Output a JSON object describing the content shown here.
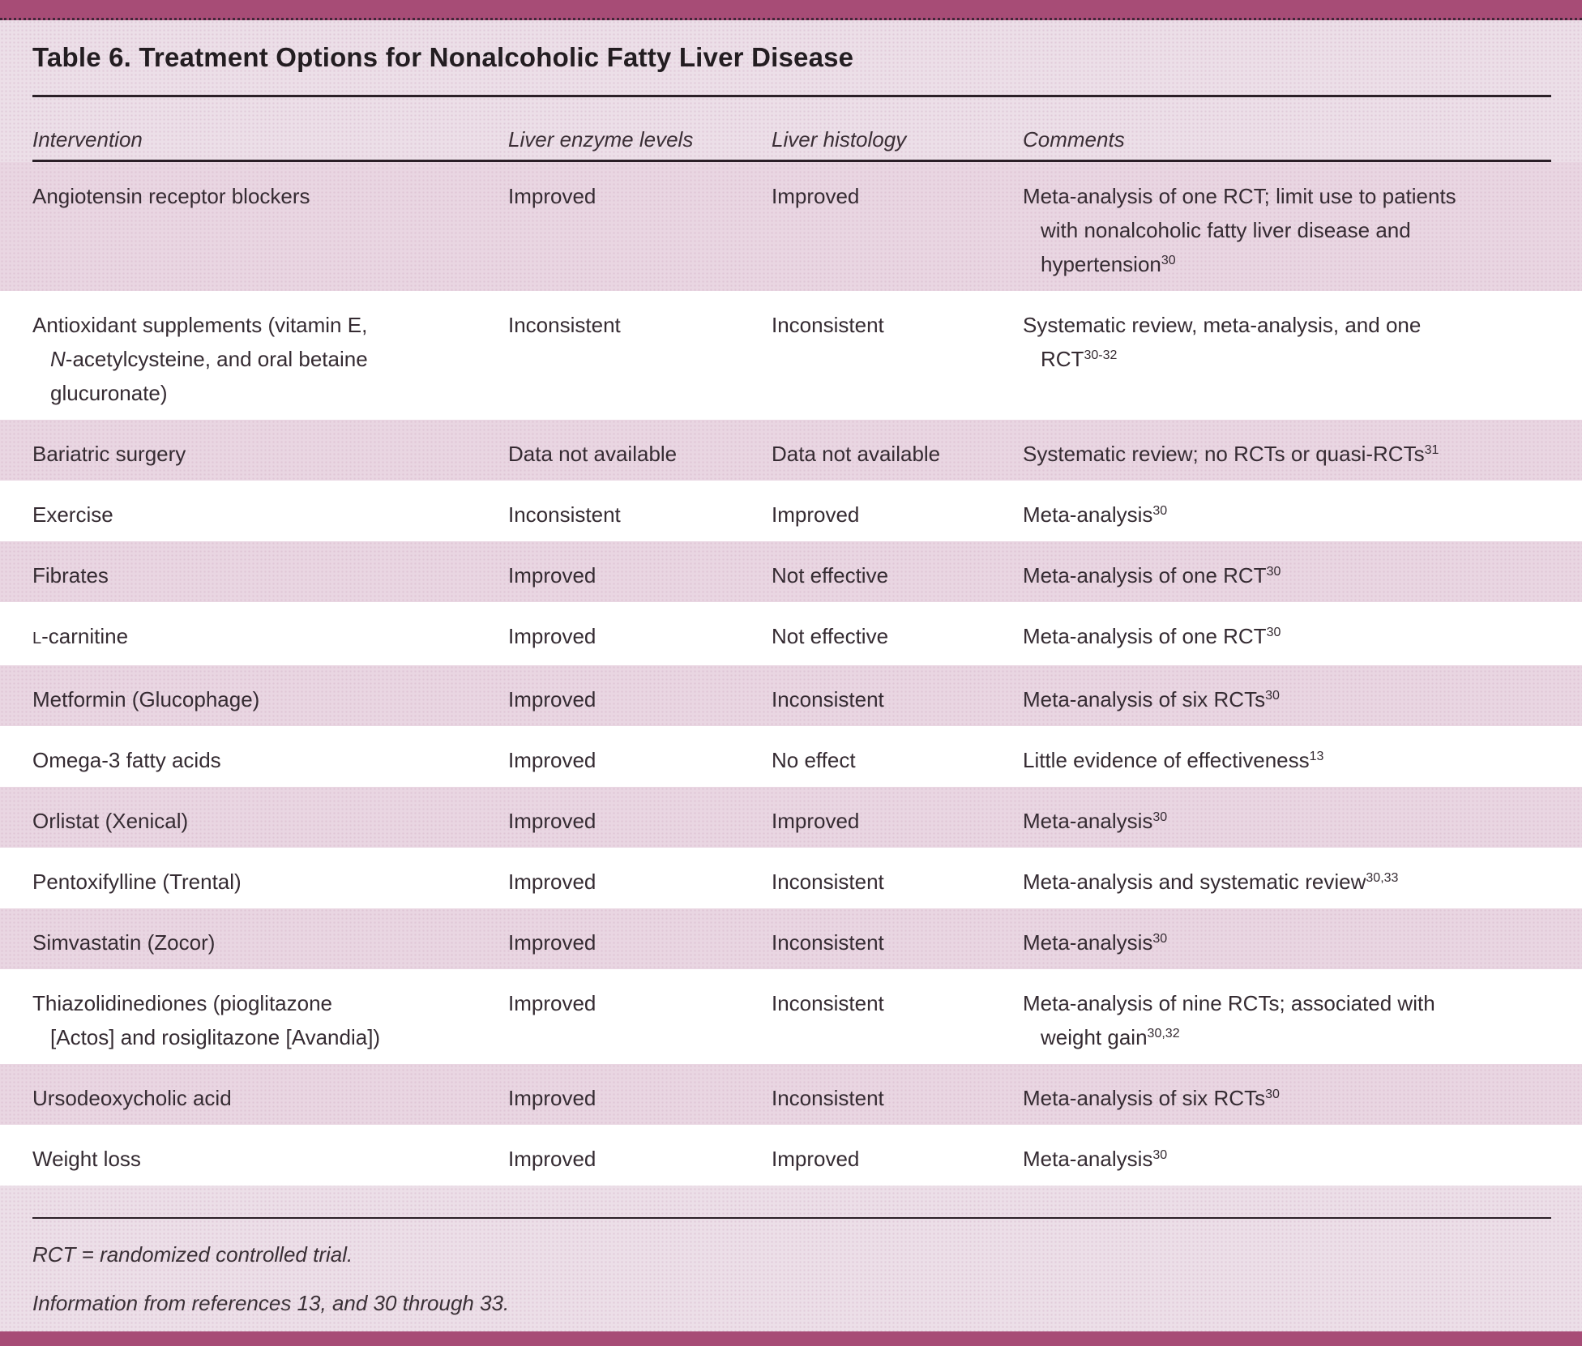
{
  "title": "Table 6. Treatment Options for Nonalcoholic Fatty Liver Disease",
  "columns": [
    "Intervention",
    "Liver enzyme levels",
    "Liver histology",
    "Comments"
  ],
  "rows": [
    {
      "intervention": [
        [
          {
            "t": "Angiotensin receptor blockers"
          }
        ]
      ],
      "enzyme": [
        [
          {
            "t": "Improved"
          }
        ]
      ],
      "histology": [
        [
          {
            "t": "Improved"
          }
        ]
      ],
      "comments": [
        [
          {
            "t": "Meta-analysis of one RCT; limit use to patients"
          }
        ],
        [
          {
            "t": "with nonalcoholic fatty liver disease and"
          }
        ],
        [
          {
            "t": "hypertension"
          },
          {
            "t": "30",
            "sup": true
          }
        ]
      ]
    },
    {
      "intervention": [
        [
          {
            "t": "Antioxidant supplements (vitamin E,"
          }
        ],
        [
          {
            "t": "N",
            "i": true
          },
          {
            "t": "-acetylcysteine, and oral betaine"
          }
        ],
        [
          {
            "t": "glucuronate)"
          }
        ]
      ],
      "enzyme": [
        [
          {
            "t": "Inconsistent"
          }
        ]
      ],
      "histology": [
        [
          {
            "t": "Inconsistent"
          }
        ]
      ],
      "comments": [
        [
          {
            "t": "Systematic review, meta-analysis, and one"
          }
        ],
        [
          {
            "t": "RCT"
          },
          {
            "t": "30-32",
            "sup": true
          }
        ]
      ]
    },
    {
      "intervention": [
        [
          {
            "t": "Bariatric surgery"
          }
        ]
      ],
      "enzyme": [
        [
          {
            "t": "Data not available"
          }
        ]
      ],
      "histology": [
        [
          {
            "t": "Data not available"
          }
        ]
      ],
      "comments": [
        [
          {
            "t": "Systematic review; no RCTs or quasi-RCTs"
          },
          {
            "t": "31",
            "sup": true
          }
        ]
      ]
    },
    {
      "intervention": [
        [
          {
            "t": "Exercise"
          }
        ]
      ],
      "enzyme": [
        [
          {
            "t": "Inconsistent"
          }
        ]
      ],
      "histology": [
        [
          {
            "t": "Improved"
          }
        ]
      ],
      "comments": [
        [
          {
            "t": "Meta-analysis"
          },
          {
            "t": "30",
            "sup": true
          }
        ]
      ]
    },
    {
      "intervention": [
        [
          {
            "t": "Fibrates"
          }
        ]
      ],
      "enzyme": [
        [
          {
            "t": "Improved"
          }
        ]
      ],
      "histology": [
        [
          {
            "t": "Not effective"
          }
        ]
      ],
      "comments": [
        [
          {
            "t": "Meta-analysis of one RCT"
          },
          {
            "t": "30",
            "sup": true
          }
        ]
      ]
    },
    {
      "intervention": [
        [
          {
            "t": "L",
            "sc": true
          },
          {
            "t": "-carnitine"
          }
        ]
      ],
      "enzyme": [
        [
          {
            "t": "Improved"
          }
        ]
      ],
      "histology": [
        [
          {
            "t": "Not effective"
          }
        ]
      ],
      "comments": [
        [
          {
            "t": "Meta-analysis of one RCT"
          },
          {
            "t": "30",
            "sup": true
          }
        ]
      ]
    },
    {
      "intervention": [
        [
          {
            "t": "Metformin (Glucophage)"
          }
        ]
      ],
      "enzyme": [
        [
          {
            "t": "Improved"
          }
        ]
      ],
      "histology": [
        [
          {
            "t": "Inconsistent"
          }
        ]
      ],
      "comments": [
        [
          {
            "t": "Meta-analysis of six RCTs"
          },
          {
            "t": "30",
            "sup": true
          }
        ]
      ]
    },
    {
      "intervention": [
        [
          {
            "t": "Omega-3 fatty acids"
          }
        ]
      ],
      "enzyme": [
        [
          {
            "t": "Improved"
          }
        ]
      ],
      "histology": [
        [
          {
            "t": "No effect"
          }
        ]
      ],
      "comments": [
        [
          {
            "t": "Little evidence of effectiveness"
          },
          {
            "t": "13",
            "sup": true
          }
        ]
      ]
    },
    {
      "intervention": [
        [
          {
            "t": "Orlistat (Xenical)"
          }
        ]
      ],
      "enzyme": [
        [
          {
            "t": "Improved"
          }
        ]
      ],
      "histology": [
        [
          {
            "t": "Improved"
          }
        ]
      ],
      "comments": [
        [
          {
            "t": "Meta-analysis"
          },
          {
            "t": "30",
            "sup": true
          }
        ]
      ]
    },
    {
      "intervention": [
        [
          {
            "t": "Pentoxifylline (Trental)"
          }
        ]
      ],
      "enzyme": [
        [
          {
            "t": "Improved"
          }
        ]
      ],
      "histology": [
        [
          {
            "t": "Inconsistent"
          }
        ]
      ],
      "comments": [
        [
          {
            "t": "Meta-analysis and systematic review"
          },
          {
            "t": "30,33",
            "sup": true
          }
        ]
      ]
    },
    {
      "intervention": [
        [
          {
            "t": "Simvastatin (Zocor)"
          }
        ]
      ],
      "enzyme": [
        [
          {
            "t": "Improved"
          }
        ]
      ],
      "histology": [
        [
          {
            "t": "Inconsistent"
          }
        ]
      ],
      "comments": [
        [
          {
            "t": "Meta-analysis"
          },
          {
            "t": "30",
            "sup": true
          }
        ]
      ]
    },
    {
      "intervention": [
        [
          {
            "t": "Thiazolidinediones (pioglitazone"
          }
        ],
        [
          {
            "t": "[Actos] and rosiglitazone [Avandia])"
          }
        ]
      ],
      "enzyme": [
        [
          {
            "t": "Improved"
          }
        ]
      ],
      "histology": [
        [
          {
            "t": "Inconsistent"
          }
        ]
      ],
      "comments": [
        [
          {
            "t": "Meta-analysis of nine RCTs; associated with"
          }
        ],
        [
          {
            "t": "weight gain"
          },
          {
            "t": "30,32",
            "sup": true
          }
        ]
      ]
    },
    {
      "intervention": [
        [
          {
            "t": "Ursodeoxycholic acid"
          }
        ]
      ],
      "enzyme": [
        [
          {
            "t": "Improved"
          }
        ]
      ],
      "histology": [
        [
          {
            "t": "Inconsistent"
          }
        ]
      ],
      "comments": [
        [
          {
            "t": "Meta-analysis of six RCTs"
          },
          {
            "t": "30",
            "sup": true
          }
        ]
      ]
    },
    {
      "intervention": [
        [
          {
            "t": "Weight loss"
          }
        ]
      ],
      "enzyme": [
        [
          {
            "t": "Improved"
          }
        ]
      ],
      "histology": [
        [
          {
            "t": "Improved"
          }
        ]
      ],
      "comments": [
        [
          {
            "t": "Meta-analysis"
          },
          {
            "t": "30",
            "sup": true
          }
        ]
      ]
    }
  ],
  "footnotes": [
    "RCT = randomized controlled trial.",
    "Information from references 13, and 30 through 33."
  ],
  "colors": {
    "accent_bar": "#a74c76",
    "page_background": "#ecdfe8",
    "pink_row": "#e9d6e2",
    "white_row": "#ffffff",
    "rule": "#2b1f27",
    "text": "#352b32"
  }
}
